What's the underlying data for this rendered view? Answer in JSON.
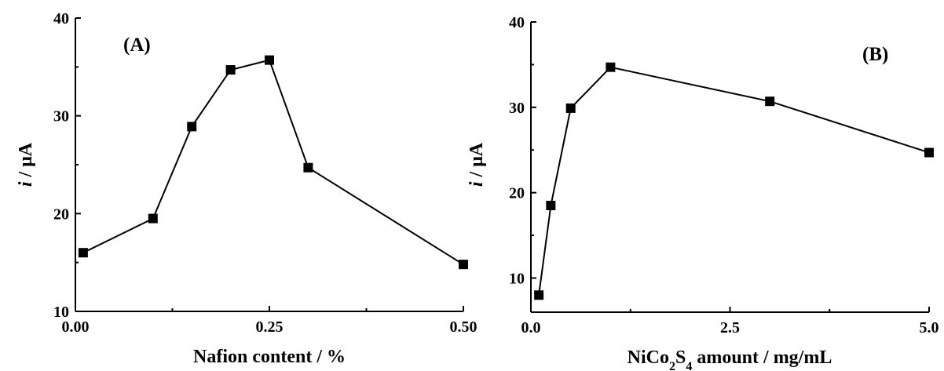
{
  "chart_data": [
    {
      "type": "line",
      "panel_label": "(A)",
      "xlabel": "Nafion content / %",
      "ylabel_italic": "i",
      "ylabel_rest": " / μA",
      "xlim": [
        0.0,
        0.5
      ],
      "ylim": [
        10,
        40
      ],
      "x_ticks": [
        {
          "value": 0.0,
          "label": "0.00"
        },
        {
          "value": 0.25,
          "label": "0.25"
        },
        {
          "value": 0.5,
          "label": "0.50"
        }
      ],
      "y_ticks": [
        {
          "value": 10,
          "label": "10"
        },
        {
          "value": 20,
          "label": "20"
        },
        {
          "value": 30,
          "label": "30"
        },
        {
          "value": 40,
          "label": "40"
        }
      ],
      "series": [
        {
          "x": [
            0.01,
            0.1,
            0.15,
            0.2,
            0.25,
            0.3,
            0.5
          ],
          "y": [
            16.0,
            19.5,
            28.9,
            34.7,
            35.7,
            24.7,
            14.8
          ]
        }
      ],
      "grid": false,
      "marker": "square",
      "color": "#000000"
    },
    {
      "type": "line",
      "panel_label": "(B)",
      "xlabel_parts": [
        {
          "text": "NiCo",
          "sub": false
        },
        {
          "text": "2",
          "sub": true
        },
        {
          "text": "S",
          "sub": false
        },
        {
          "text": "4",
          "sub": true
        },
        {
          "text": " amount / mg/mL",
          "sub": false
        }
      ],
      "ylabel_italic": "i",
      "ylabel_rest": " / μA",
      "xlim": [
        0.0,
        5.0
      ],
      "ylim": [
        6,
        40
      ],
      "x_ticks": [
        {
          "value": 0.0,
          "label": "0.0"
        },
        {
          "value": 2.5,
          "label": "2.5"
        },
        {
          "value": 5.0,
          "label": "5.0"
        }
      ],
      "y_ticks": [
        {
          "value": 10,
          "label": "10"
        },
        {
          "value": 20,
          "label": "20"
        },
        {
          "value": 30,
          "label": "30"
        },
        {
          "value": 40,
          "label": "40"
        }
      ],
      "series": [
        {
          "x": [
            0.1,
            0.25,
            0.5,
            1.0,
            3.0,
            5.0
          ],
          "y": [
            8.0,
            18.5,
            29.9,
            34.7,
            30.7,
            24.7
          ]
        }
      ],
      "grid": false,
      "marker": "square",
      "color": "#000000"
    }
  ]
}
